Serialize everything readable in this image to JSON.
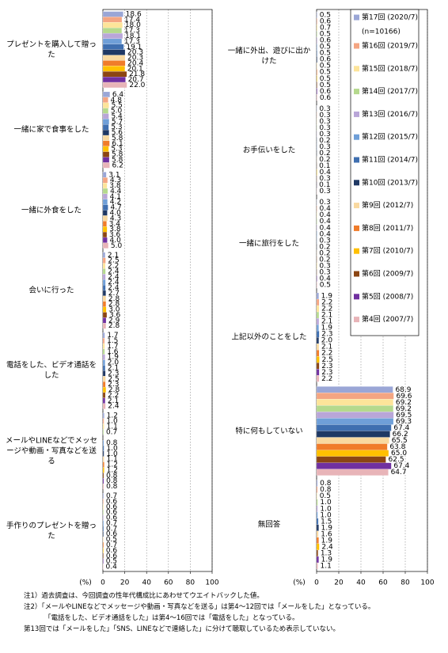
{
  "chart_data": [
    {
      "type": "bar",
      "orientation": "horizontal",
      "categories": [
        "プレゼントを購入して贈った",
        "一緒に家で食事をした",
        "一緒に外食をした",
        "会いに行った",
        "電話をした、ビデオ通話をした",
        "メールやLINEなどでメッセージや動画・写真などを送る",
        "手作りのプレゼントを贈った"
      ],
      "xlim": [
        0,
        100
      ],
      "xticks": [
        0,
        20,
        40,
        60,
        80,
        100
      ],
      "x_label": "(%)",
      "grid": true,
      "series": [
        {
          "color": "#9aa6d6",
          "values": [
            18.6,
            6.4,
            3.1,
            2.1,
            1.7,
            1.2,
            0.7
          ],
          "value_labels": [
            "18.6",
            "6.4",
            "3.1",
            "2.1",
            "1.7",
            "1.2",
            "0.7"
          ]
        },
        {
          "color": "#f4a582",
          "values": [
            17.4,
            4.8,
            4.3,
            2.5,
            1.5,
            1.0,
            0.6
          ],
          "value_labels": [
            "17.4",
            "4.8",
            "4.3",
            "2.5",
            "1.5",
            "1.0",
            "0.6"
          ]
        },
        {
          "color": "#fde49a",
          "values": [
            18.0,
            5.5,
            3.8,
            2.2,
            1.7,
            1.1,
            0.6
          ],
          "value_labels": [
            "18.0",
            "5.5",
            "3.8",
            "2.2",
            "1.7",
            "1.1",
            "0.6"
          ]
        },
        {
          "color": "#b5d98d",
          "values": [
            17.3,
            5.0,
            4.4,
            2.4,
            1.6,
            0.7,
            0.6
          ],
          "value_labels": [
            "17.3",
            "5.0",
            "4.4",
            "2.4",
            "1.6",
            "0.7",
            "0.6"
          ]
        },
        {
          "color": "#b9a6d8",
          "values": [
            18.1,
            5.4,
            4.1,
            2.4,
            1.9,
            null,
            0.6
          ],
          "value_labels": [
            "18.1",
            "5.4",
            "4.1",
            "2.4",
            "1.9",
            null,
            "0.6"
          ]
        },
        {
          "color": "#6f9fd8",
          "values": [
            17.3,
            5.7,
            4.2,
            2.4,
            2.0,
            0.8,
            0.7
          ],
          "value_labels": [
            "17.3",
            "5.7",
            "4.2",
            "2.4",
            "2.0",
            "0.8",
            "0.7"
          ]
        },
        {
          "color": "#3f6fb0",
          "values": [
            19.1,
            5.3,
            4.7,
            2.4,
            2.1,
            1.0,
            0.7
          ],
          "value_labels": [
            "19.1",
            "5.3",
            "4.7",
            "2.4",
            "2.1",
            "1.0",
            "0.7"
          ]
        },
        {
          "color": "#1f3864",
          "values": [
            20.3,
            5.6,
            4.0,
            2.7,
            2.3,
            1.0,
            0.6
          ],
          "value_labels": [
            "20.3",
            "5.6",
            "4.0",
            "2.7",
            "2.3",
            "1.0",
            "0.6"
          ]
        },
        {
          "color": "#f9d9a0",
          "values": [
            20.3,
            5.8,
            4.3,
            2.8,
            2.5,
            1.1,
            0.5
          ],
          "value_labels": [
            "20.3",
            "5.8",
            "4.3",
            "2.8",
            "2.5",
            "1.1",
            "0.5"
          ]
        },
        {
          "color": "#f07c2a",
          "values": [
            20.4,
            6.1,
            3.4,
            2.8,
            2.3,
            1.2,
            0.7
          ],
          "value_labels": [
            "20.4",
            "6.1",
            "3.4",
            "2.8",
            "2.3",
            "1.2",
            "0.7"
          ]
        },
        {
          "color": "#ffc000",
          "values": [
            20.1,
            5.3,
            3.8,
            3.0,
            2.8,
            1.2,
            0.6
          ],
          "value_labels": [
            "20.1",
            "5.3",
            "3.8",
            "3.0",
            "2.8",
            "1.2",
            "0.6"
          ]
        },
        {
          "color": "#8b4513",
          "values": [
            21.8,
            5.8,
            3.6,
            3.6,
            2.2,
            0.8,
            0.6
          ],
          "value_labels": [
            "21.8",
            "5.8",
            "3.6",
            "3.6",
            "2.2",
            "0.8",
            "0.6"
          ]
        },
        {
          "color": "#7030a0",
          "values": [
            20.7,
            5.8,
            4.0,
            2.9,
            2.1,
            0.8,
            0.5
          ],
          "value_labels": [
            "20.7",
            "5.8",
            "4.0",
            "2.9",
            "2.1",
            "0.8",
            "0.5"
          ]
        },
        {
          "color": "#e8b4b8",
          "values": [
            22.0,
            6.2,
            5.0,
            2.8,
            2.4,
            0.8,
            0.4
          ],
          "value_labels": [
            "22.0",
            "6.2",
            "5.0",
            "2.8",
            "2.4",
            "0.8",
            "0.4"
          ]
        }
      ]
    },
    {
      "type": "bar",
      "orientation": "horizontal",
      "categories": [
        "一緒に外出、遊びに出かけた",
        "お手伝いをした",
        "一緒に旅行をした",
        "上記以外のことをした",
        "特に何もしていない",
        "無回答"
      ],
      "xlim": [
        0,
        100
      ],
      "xticks": [
        0,
        20,
        40,
        60,
        80,
        100
      ],
      "x_label": "(%)",
      "grid": true,
      "legend_note": "(n=10166)",
      "series": [
        {
          "name": "第17回 (2020/7)",
          "color": "#9aa6d6",
          "values": [
            0.5,
            0.3,
            0.3,
            1.9,
            68.9,
            0.8
          ],
          "value_labels": [
            "0.5",
            "0.3",
            "0.3",
            "1.9",
            "68.9",
            "0.8"
          ]
        },
        {
          "name": "第16回 (2019/7)",
          "color": "#f4a582",
          "values": [
            0.6,
            0.3,
            0.4,
            2.2,
            69.6,
            0.8
          ],
          "value_labels": [
            "0.6",
            "0.3",
            "0.4",
            "2.2",
            "69.6",
            "0.8"
          ]
        },
        {
          "name": "第15回 (2018/7)",
          "color": "#fde49a",
          "values": [
            0.7,
            0.3,
            0.4,
            2.2,
            69.2,
            0.5
          ],
          "value_labels": [
            "0.7",
            "0.3",
            "0.4",
            "2.2",
            "69.2",
            "0.5"
          ]
        },
        {
          "name": "第14回 (2017/7)",
          "color": "#b5d98d",
          "values": [
            0.5,
            0.3,
            0.4,
            2.1,
            69.2,
            1.0
          ],
          "value_labels": [
            "0.5",
            "0.3",
            "0.4",
            "2.1",
            "69.2",
            "1.0"
          ]
        },
        {
          "name": "第13回 (2016/7)",
          "color": "#b9a6d8",
          "values": [
            0.6,
            0.3,
            0.4,
            2.1,
            69.5,
            1.0
          ],
          "value_labels": [
            "0.6",
            "0.3",
            "0.4",
            "2.1",
            "69.5",
            "1.0"
          ]
        },
        {
          "name": "第12回 (2015/7)",
          "color": "#6f9fd8",
          "values": [
            0.5,
            0.2,
            0.4,
            1.9,
            69.3,
            1.0
          ],
          "value_labels": [
            "0.5",
            "0.2",
            "0.4",
            "1.9",
            "69.3",
            "1.0"
          ]
        },
        {
          "name": "第11回 (2014/7)",
          "color": "#3f6fb0",
          "values": [
            0.5,
            0.3,
            0.3,
            2.3,
            67.4,
            1.5
          ],
          "value_labels": [
            "0.5",
            "0.3",
            "0.3",
            "2.3",
            "67.4",
            "1.5"
          ]
        },
        {
          "name": "第10回 (2013/7)",
          "color": "#1f3864",
          "values": [
            0.6,
            0.2,
            0.2,
            2.0,
            66.2,
            1.9
          ],
          "value_labels": [
            "0.6",
            "0.2",
            "0.2",
            "2.0",
            "66.2",
            "1.9"
          ]
        },
        {
          "name": "第9回 (2012/7)",
          "color": "#f9d9a0",
          "values": [
            0.5,
            0.2,
            0.2,
            2.1,
            65.5,
            1.6
          ],
          "value_labels": [
            "0.5",
            "0.2",
            "0.2",
            "2.1",
            "65.5",
            "1.6"
          ]
        },
        {
          "name": "第8回 (2011/7)",
          "color": "#f07c2a",
          "values": [
            0.5,
            0.1,
            0.2,
            2.2,
            63.8,
            1.9
          ],
          "value_labels": [
            "0.5",
            "0.1",
            "0.2",
            "2.2",
            "63.8",
            "1.9"
          ]
        },
        {
          "name": "第7回 (2010/7)",
          "color": "#ffc000",
          "values": [
            0.5,
            0.4,
            0.3,
            2.5,
            65.0,
            2.4
          ],
          "value_labels": [
            "0.5",
            "0.4",
            "0.3",
            "2.5",
            "65.0",
            "2.4"
          ]
        },
        {
          "name": "第6回 (2009/7)",
          "color": "#8b4513",
          "values": [
            0.5,
            0.3,
            0.3,
            2.3,
            62.5,
            1.3
          ],
          "value_labels": [
            "0.5",
            "0.3",
            "0.3",
            "2.3",
            "62.5",
            "1.3"
          ]
        },
        {
          "name": "第5回 (2008/7)",
          "color": "#7030a0",
          "values": [
            0.6,
            0.1,
            0.4,
            2.3,
            67.4,
            1.9
          ],
          "value_labels": [
            "0.6",
            "0.1",
            "0.4",
            "2.3",
            "67.4",
            "1.9"
          ]
        },
        {
          "name": "第4回 (2007/7)",
          "color": "#e8b4b8",
          "values": [
            0.6,
            0.3,
            0.5,
            2.2,
            64.7,
            1.1
          ],
          "value_labels": [
            "0.6",
            "0.3",
            "0.5",
            "2.2",
            "64.7",
            "1.1"
          ]
        }
      ]
    }
  ],
  "notes": [
    "注1）過去調査は、今回調査の性年代構成比にあわせてウエイトバックした値。",
    "注2）「メールやLINEなどでメッセージや動画・写真などを送る」は第4～12回では「メールをした」となっている。",
    "「電話をした、ビデオ通話をした」は第4～16回では「電話をした」となっている。",
    "第13回では「メールをした」「SNS、LINEなどで連絡した」に分けて聴取しているため表示していない。"
  ]
}
